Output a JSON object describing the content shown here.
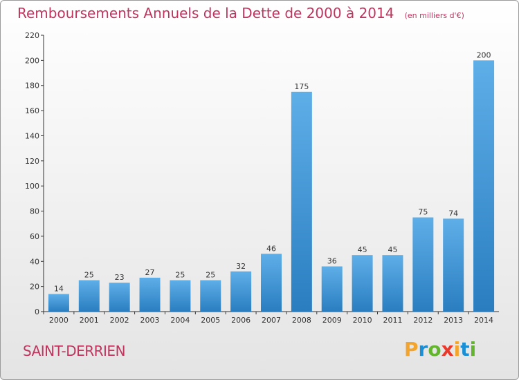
{
  "chart_data": {
    "type": "bar",
    "title": "Remboursements Annuels de la Dette de 2000 à 2014",
    "subtitle": "(en milliers d'€)",
    "categories": [
      "2000",
      "2001",
      "2002",
      "2003",
      "2004",
      "2005",
      "2006",
      "2007",
      "2008",
      "2009",
      "2010",
      "2011",
      "2012",
      "2013",
      "2014"
    ],
    "values": [
      14,
      25,
      23,
      27,
      25,
      25,
      32,
      46,
      175,
      36,
      45,
      45,
      75,
      74,
      200
    ],
    "ylim": [
      0,
      220
    ],
    "yticks": [
      0,
      20,
      40,
      60,
      80,
      100,
      120,
      140,
      160,
      180,
      200,
      220
    ],
    "grid": false,
    "data_labels": true,
    "bar_color_light": "#5eaee8",
    "bar_color_dark": "#2a7ec0"
  },
  "commune": "SAINT-DERRIEN",
  "logo": {
    "text": "Proxiti",
    "letters": [
      "P",
      "r",
      "o",
      "x",
      "i",
      "t",
      "i"
    ],
    "colors": [
      "#f3a42c",
      "#1b8fd6",
      "#64b52e",
      "#e8392b",
      "#f3a42c",
      "#1b8fd6",
      "#64b52e"
    ]
  },
  "colors": {
    "title": "#c0345e",
    "axis": "#333333"
  }
}
